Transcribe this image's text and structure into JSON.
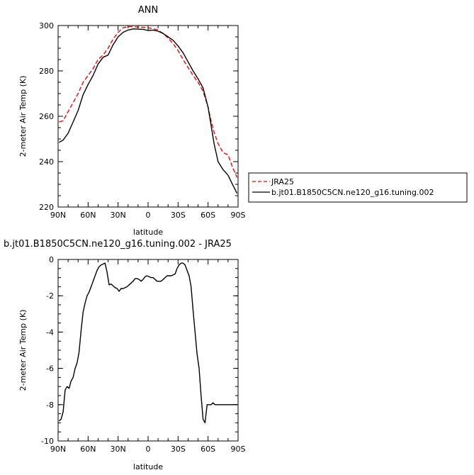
{
  "chart_data": [
    {
      "type": "line",
      "title": "ANN",
      "xlabel": "latitude",
      "ylabel": "2-meter Air Temp (K)",
      "xlim": [
        90,
        -90
      ],
      "ylim": [
        220,
        300
      ],
      "x_tick_values": [
        90,
        60,
        30,
        0,
        -30,
        -60,
        -90
      ],
      "x_tick_labels": [
        "90N",
        "60N",
        "30N",
        "0",
        "30S",
        "60S",
        "90S"
      ],
      "y_ticks": [
        220,
        240,
        260,
        280,
        300
      ],
      "legend_position": "right",
      "series": [
        {
          "name": "JRA25",
          "color": "#ff0000",
          "dash": "dashed",
          "x": [
            89,
            85,
            80,
            75,
            70,
            65,
            60,
            55,
            50,
            45,
            40,
            35,
            30,
            25,
            20,
            15,
            10,
            5,
            0,
            -5,
            -10,
            -15,
            -20,
            -25,
            -30,
            -35,
            -40,
            -45,
            -50,
            -55,
            -60,
            -63,
            -66,
            -70,
            -75,
            -80,
            -85,
            -89
          ],
          "y": [
            257.5,
            258,
            262,
            266,
            270,
            275,
            278,
            281,
            285,
            287,
            290,
            294,
            297,
            299,
            299.5,
            299.5,
            299.3,
            299.2,
            299,
            298.6,
            298,
            296.5,
            294.5,
            292,
            289,
            285,
            281.5,
            278,
            275,
            271,
            264,
            258,
            253,
            248,
            244,
            243,
            237,
            233
          ]
        },
        {
          "name": "b.jt01.B1850C5CN.ne120_g16.tuning.002",
          "color": "#000000",
          "dash": "solid",
          "x": [
            89,
            85,
            80,
            75,
            70,
            65,
            60,
            55,
            50,
            45,
            40,
            35,
            30,
            25,
            20,
            15,
            10,
            5,
            0,
            -5,
            -10,
            -15,
            -20,
            -25,
            -30,
            -35,
            -40,
            -45,
            -50,
            -55,
            -60,
            -63,
            -66,
            -70,
            -75,
            -80,
            -85,
            -89
          ],
          "y": [
            248.5,
            249.5,
            252.5,
            257.5,
            262.5,
            269.5,
            274,
            278,
            283,
            286,
            287,
            291.5,
            295,
            297,
            298,
            298.5,
            298.4,
            298.3,
            297.8,
            298,
            297.5,
            296.5,
            295,
            293.5,
            291,
            288,
            284,
            280,
            276.5,
            272.5,
            264,
            256,
            248,
            240,
            236.5,
            234,
            229.5,
            226
          ]
        }
      ]
    },
    {
      "type": "line",
      "title": "b.jt01.B1850C5CN.ne120_g16.tuning.002 - JRA25",
      "xlabel": "latitude",
      "ylabel": "2-meter Air Temp (K)",
      "xlim": [
        90,
        -90
      ],
      "ylim": [
        -10,
        0
      ],
      "x_tick_values": [
        90,
        60,
        30,
        0,
        -30,
        -60,
        -90
      ],
      "x_tick_labels": [
        "90N",
        "60N",
        "30N",
        "0",
        "30S",
        "60S",
        "90S"
      ],
      "y_ticks": [
        -10,
        -8,
        -6,
        -4,
        -2,
        0
      ],
      "series": [
        {
          "color": "#000000",
          "dash": "solid",
          "x": [
            89,
            87,
            85,
            83,
            81,
            79,
            77,
            75,
            73,
            71,
            69,
            67,
            65,
            63,
            61,
            59,
            57,
            55,
            53,
            51,
            49,
            47,
            45,
            43,
            41,
            39,
            37,
            35,
            33,
            31,
            29,
            27,
            25,
            23,
            21,
            19,
            17,
            15,
            13,
            11,
            9,
            7,
            5,
            3,
            1,
            -1,
            -3,
            -5,
            -7,
            -9,
            -11,
            -13,
            -15,
            -17,
            -19,
            -21,
            -23,
            -25,
            -27,
            -29,
            -31,
            -33,
            -35,
            -37,
            -39,
            -41,
            -43,
            -45,
            -47,
            -49,
            -51,
            -53,
            -55,
            -57,
            -59,
            -61,
            -63,
            -65,
            -67,
            -69,
            -71,
            -73,
            -75,
            -77,
            -79,
            -81,
            -83,
            -85,
            -87,
            -89
          ],
          "y": [
            -8.9,
            -8.8,
            -8.4,
            -7.2,
            -7.0,
            -7.1,
            -6.7,
            -6.5,
            -6.0,
            -5.7,
            -5.1,
            -3.9,
            -2.9,
            -2.4,
            -2.0,
            -1.8,
            -1.5,
            -1.2,
            -0.9,
            -0.6,
            -0.4,
            -0.3,
            -0.25,
            -0.2,
            -0.7,
            -1.4,
            -1.35,
            -1.45,
            -1.55,
            -1.6,
            -1.75,
            -1.6,
            -1.6,
            -1.55,
            -1.5,
            -1.4,
            -1.3,
            -1.2,
            -1.05,
            -1.05,
            -1.1,
            -1.2,
            -1.1,
            -0.95,
            -0.9,
            -0.95,
            -1.0,
            -1.0,
            -1.1,
            -1.2,
            -1.2,
            -1.2,
            -1.1,
            -1.0,
            -0.9,
            -0.9,
            -0.9,
            -0.85,
            -0.8,
            -0.5,
            -0.3,
            -0.2,
            -0.2,
            -0.3,
            -0.6,
            -0.9,
            -1.5,
            -2.8,
            -4.0,
            -5.2,
            -6.0,
            -7.5,
            -8.8,
            -9.0,
            -8.0,
            -8.0,
            -8.0,
            -7.9,
            -8.0,
            -8.0,
            -8.0,
            -8.0,
            -8.0,
            -8.0,
            -8.0,
            -8.0,
            -8.0,
            -8.0,
            -8.0,
            -8.0
          ]
        }
      ]
    }
  ]
}
